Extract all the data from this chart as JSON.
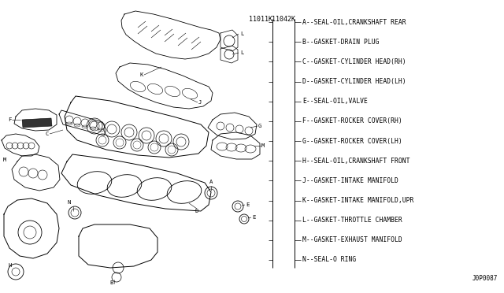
{
  "bg_color": "#ffffff",
  "part_numbers": [
    "11011K",
    "11042K"
  ],
  "legend_items": [
    "A--SEAL-OIL,CRANKSHAFT REAR",
    "B--GASKET-DRAIN PLUG",
    "C--GASKET-CYLINDER HEAD(RH)",
    "D--GASKET-CYLINDER HEAD(LH)",
    "E--SEAL-OIL,VALVE",
    "F--GASKET-ROCKER COVER(RH)",
    "G--GASKET-ROCKER COVER(LH)",
    "H--SEAL-OIL,CRANKSHAFT FRONT",
    "J--GASKET-INTAKE MANIFOLD",
    "K--GASKET-INTAKE MANIFOLD,UPR",
    "L--GASKET-THROTTLE CHAMBER",
    "M--GASKET-EXHAUST MANIFOLD",
    "N--SEAL-O RING"
  ],
  "footer_text": "J0P0087",
  "line_color": "#000000",
  "text_color": "#000000",
  "legend_fontsize": 5.8,
  "part_num_fontsize": 6.0,
  "label_fontsize": 5.2,
  "footer_fontsize": 5.5
}
